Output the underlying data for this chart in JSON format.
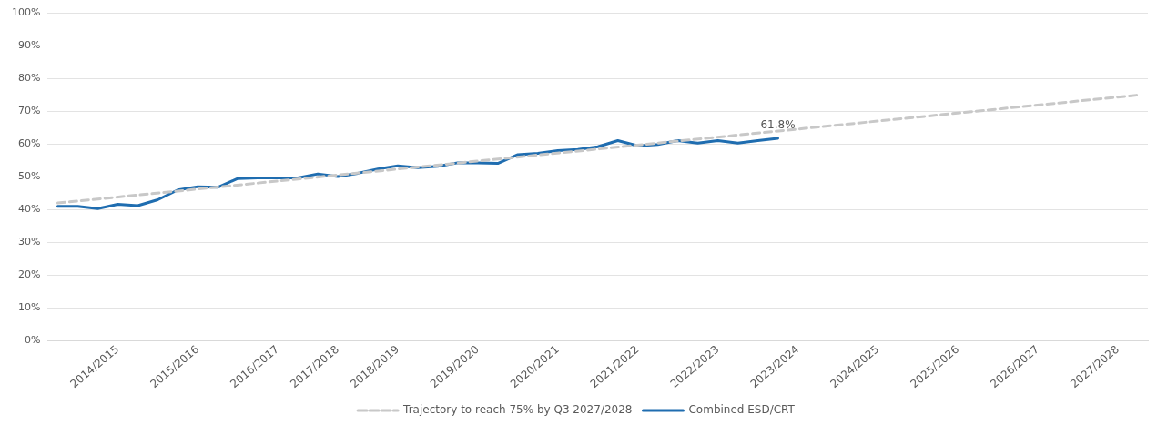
{
  "chart_data": {
    "type": "line",
    "categories": [
      null,
      null,
      null,
      "2014/2015",
      null,
      null,
      null,
      "2015/2016",
      null,
      null,
      null,
      "2016/2017",
      null,
      null,
      "2017/2018",
      null,
      null,
      "2018/2019",
      null,
      null,
      null,
      "2019/2020",
      null,
      null,
      null,
      "2020/2021",
      null,
      null,
      null,
      "2021/2022",
      null,
      null,
      null,
      "2022/2023",
      null,
      null,
      null,
      "2023/2024",
      null,
      null,
      null,
      "2024/2025",
      null,
      null,
      null,
      "2025/2026",
      null,
      null,
      null,
      "2026/2027",
      null,
      null,
      null,
      "2027/2028",
      null
    ],
    "series": [
      {
        "name": "Trajectory to reach 75% by Q3 2027/2028",
        "color": "#c8c8c8",
        "line_style": "dashed",
        "values": [
          42,
          null,
          null,
          null,
          null,
          null,
          null,
          null,
          null,
          null,
          null,
          null,
          null,
          null,
          null,
          null,
          null,
          null,
          null,
          null,
          null,
          null,
          null,
          null,
          null,
          null,
          null,
          null,
          null,
          null,
          null,
          null,
          null,
          null,
          null,
          null,
          null,
          null,
          null,
          null,
          null,
          null,
          null,
          null,
          null,
          null,
          null,
          null,
          null,
          null,
          null,
          null,
          null,
          null,
          75
        ]
      },
      {
        "name": "Combined ESD/CRT",
        "color": "#1f6db0",
        "line_style": "solid",
        "values": [
          41.0,
          41.0,
          40.3,
          41.6,
          41.2,
          43.0,
          46.0,
          47.0,
          46.8,
          49.5,
          49.7,
          49.7,
          49.7,
          50.9,
          50.1,
          51.1,
          52.4,
          53.4,
          52.8,
          53.2,
          54.3,
          54.3,
          54.1,
          56.8,
          57.2,
          58.0,
          58.4,
          59.2,
          61.1,
          59.5,
          59.9,
          61.1,
          60.3,
          61.1,
          60.3,
          61.1,
          61.8,
          null,
          null,
          null,
          null,
          null,
          null,
          null,
          null,
          null,
          null,
          null,
          null,
          null,
          null,
          null,
          null,
          null,
          null
        ],
        "value_labels": [
          null,
          null,
          null,
          null,
          null,
          null,
          null,
          null,
          null,
          null,
          null,
          null,
          null,
          null,
          null,
          null,
          null,
          null,
          null,
          null,
          null,
          null,
          null,
          null,
          null,
          null,
          null,
          null,
          null,
          null,
          null,
          null,
          null,
          null,
          null,
          null,
          "61.8%",
          null,
          null,
          null,
          null,
          null,
          null,
          null,
          null,
          null,
          null,
          null,
          null,
          null,
          null,
          null,
          null,
          null,
          null
        ]
      }
    ],
    "ylim": [
      0,
      100
    ],
    "yticks": [
      {
        "value": 0,
        "label": "0%"
      },
      {
        "value": 10,
        "label": "10%"
      },
      {
        "value": 20,
        "label": "20%"
      },
      {
        "value": 30,
        "label": "30%"
      },
      {
        "value": 40,
        "label": "40%"
      },
      {
        "value": 50,
        "label": "50%"
      },
      {
        "value": 60,
        "label": "60%"
      },
      {
        "value": 70,
        "label": "70%"
      },
      {
        "value": 80,
        "label": "80%"
      },
      {
        "value": 90,
        "label": "90%"
      },
      {
        "value": 100,
        "label": "100%"
      }
    ],
    "grid": "y",
    "legend": "bottom",
    "marker": "none"
  }
}
